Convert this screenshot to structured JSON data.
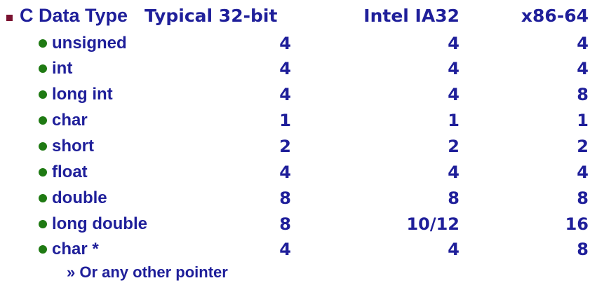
{
  "header": {
    "col0": "C Data Type",
    "col1": "Typical 32-bit",
    "col2": "Intel IA32",
    "col3": "x86-64"
  },
  "rows": [
    {
      "type": "unsigned",
      "typical32": "4",
      "ia32": "4",
      "x8664": "4"
    },
    {
      "type": "int",
      "typical32": "4",
      "ia32": "4",
      "x8664": "4"
    },
    {
      "type": "long int",
      "typical32": "4",
      "ia32": "4",
      "x8664": "8"
    },
    {
      "type": "char",
      "typical32": "1",
      "ia32": "1",
      "x8664": "1"
    },
    {
      "type": "short",
      "typical32": "2",
      "ia32": "2",
      "x8664": "2"
    },
    {
      "type": "float",
      "typical32": "4",
      "ia32": "4",
      "x8664": "4"
    },
    {
      "type": "double",
      "typical32": "8",
      "ia32": "8",
      "x8664": "8"
    },
    {
      "type": "long double",
      "typical32": "8",
      "ia32": "10/12",
      "x8664": "16"
    },
    {
      "type": "char *",
      "typical32": "4",
      "ia32": "4",
      "x8664": "8"
    }
  ],
  "note": "» Or any other pointer",
  "colors": {
    "text": "#1f1f9a",
    "header_bullet": "#7a1230",
    "row_bullet": "#1f7a13"
  }
}
